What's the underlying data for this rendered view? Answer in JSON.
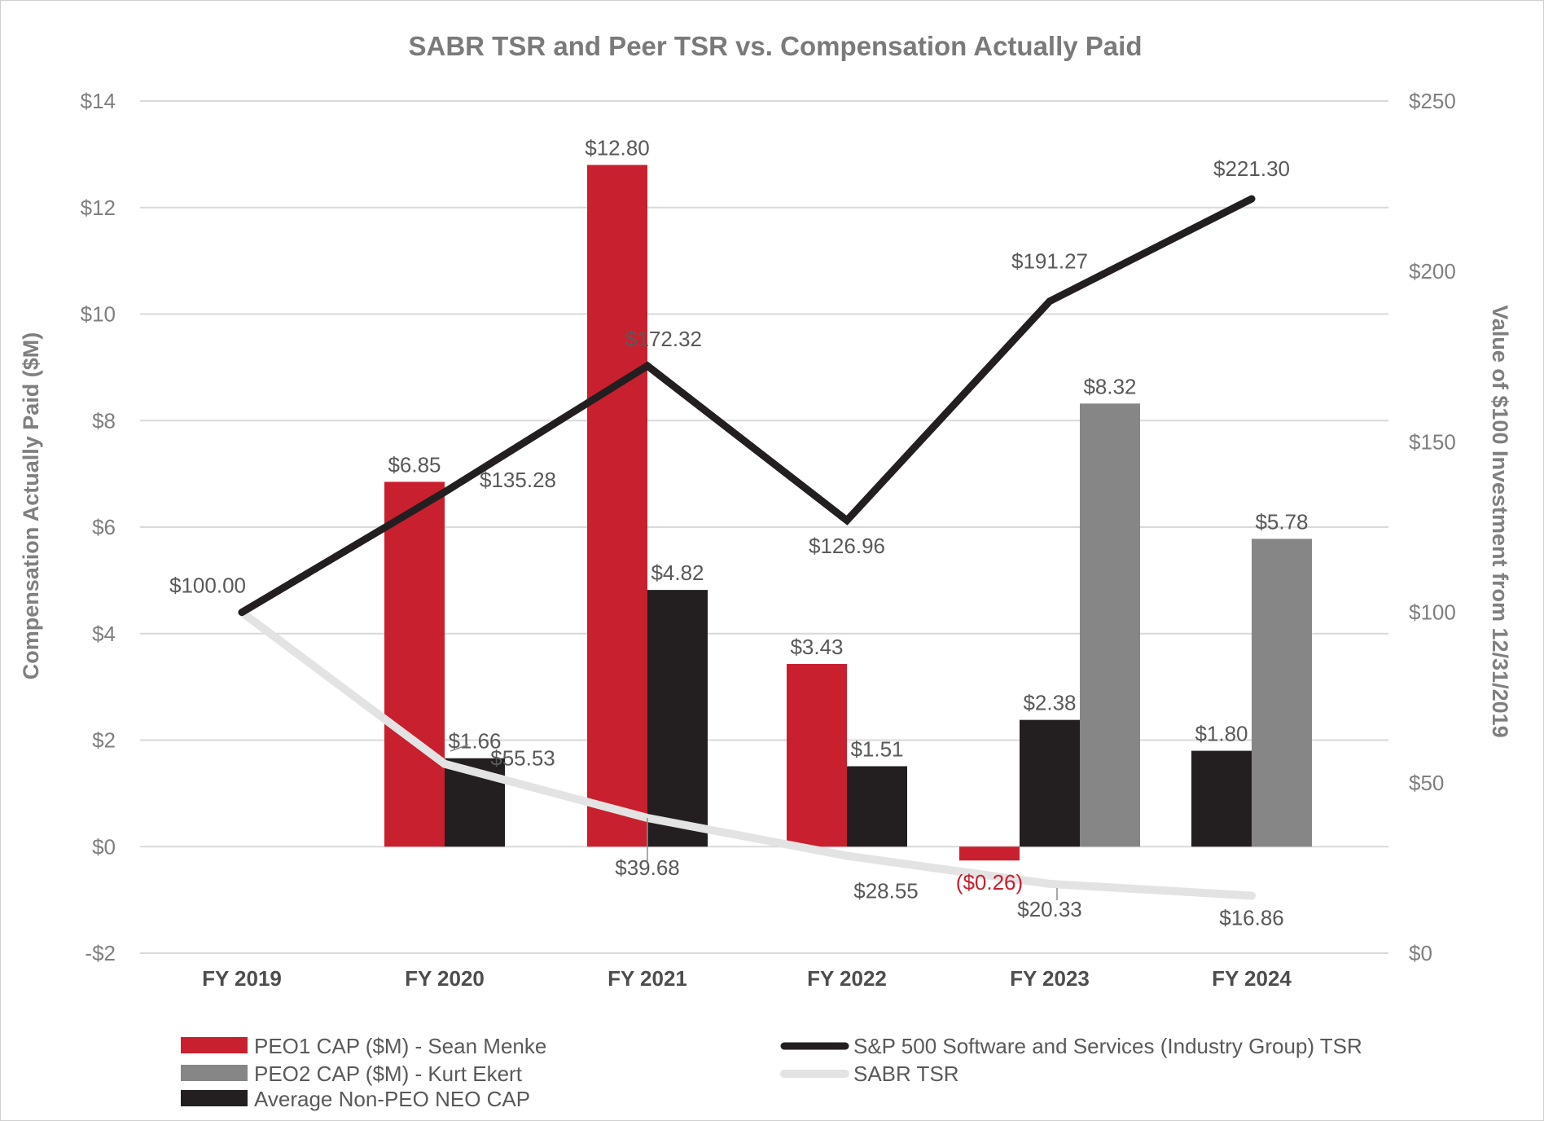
{
  "chart_data": {
    "type": "bar+line",
    "title": "SABR TSR and Peer TSR vs. Compensation Actually Paid",
    "categories": [
      "FY 2019",
      "FY 2020",
      "FY 2021",
      "FY 2022",
      "FY 2023",
      "FY 2024"
    ],
    "ylabel_left": "Compensation Actually Paid ($M)",
    "ylabel_right": "Value of $100 Investment from 12/31/2019",
    "ylim_left": [
      -2,
      14
    ],
    "yticks_left": [
      -2,
      0,
      2,
      4,
      6,
      8,
      10,
      12,
      14
    ],
    "yticks_left_labels": [
      "-$2",
      "$0",
      "$2",
      "$4",
      "$6",
      "$8",
      "$10",
      "$12",
      "$14"
    ],
    "ylim_right": [
      0,
      250
    ],
    "yticks_right": [
      0,
      50,
      100,
      150,
      200,
      250
    ],
    "yticks_right_labels": [
      "$0",
      "$50",
      "$100",
      "$150",
      "$200",
      "$250"
    ],
    "grid": true,
    "legend_position": "bottom",
    "colors": {
      "peo1": "#c8202f",
      "peo2": "#868686",
      "neo": "#231f20",
      "sp500": "#231f20",
      "sabr": "#e3e3e3",
      "grid": "#d9d9d9"
    },
    "bar_series": [
      {
        "key": "peo1",
        "name": "PEO1 CAP ($M) - Sean Menke",
        "values": [
          null,
          6.85,
          12.8,
          3.43,
          -0.26,
          null
        ],
        "labels": [
          null,
          "$6.85",
          "$12.80",
          "$3.43",
          "($0.26)",
          null
        ]
      },
      {
        "key": "neo",
        "name": "Average Non-PEO NEO CAP",
        "values": [
          null,
          1.66,
          4.82,
          1.51,
          2.38,
          1.8
        ],
        "labels": [
          null,
          "$1.66",
          "$4.82",
          "$1.51",
          "$2.38",
          "$1.80"
        ]
      },
      {
        "key": "peo2",
        "name": "PEO2 CAP ($M) - Kurt Ekert",
        "values": [
          null,
          null,
          null,
          null,
          8.32,
          5.78
        ],
        "labels": [
          null,
          null,
          null,
          null,
          "$8.32",
          "$5.78"
        ]
      }
    ],
    "line_series": [
      {
        "key": "sp500",
        "name": "S&P 500 Software and Services (Industry Group) TSR",
        "values": [
          100.0,
          135.28,
          172.32,
          126.96,
          191.27,
          221.3
        ],
        "labels": [
          "$100.00",
          "$135.28",
          "$172.32",
          "$126.96",
          "$191.27",
          "$221.30"
        ]
      },
      {
        "key": "sabr",
        "name": "SABR TSR",
        "values": [
          100.0,
          55.53,
          39.68,
          28.55,
          20.33,
          16.86
        ],
        "labels": [
          null,
          "$55.53",
          "$39.68",
          "$28.55",
          "$20.33",
          "$16.86"
        ]
      }
    ],
    "legend": [
      {
        "key": "peo1",
        "label": "PEO1 CAP ($M) - Sean Menke",
        "kind": "bar"
      },
      {
        "key": "peo2",
        "label": "PEO2 CAP ($M) - Kurt Ekert",
        "kind": "bar"
      },
      {
        "key": "neo",
        "label": "Average Non-PEO NEO CAP",
        "kind": "bar"
      },
      {
        "key": "sp500",
        "label": "S&P 500 Software and Services (Industry Group) TSR",
        "kind": "line"
      },
      {
        "key": "sabr",
        "label": "SABR TSR",
        "kind": "line"
      }
    ]
  }
}
